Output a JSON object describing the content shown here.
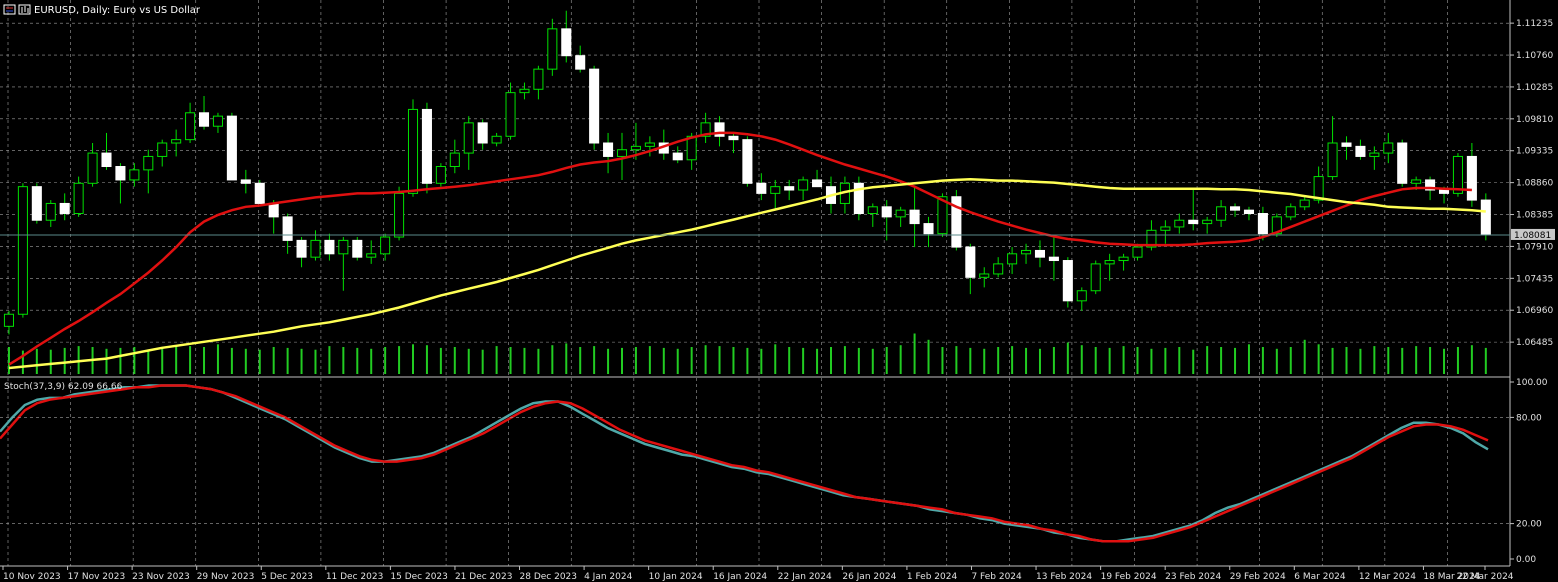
{
  "window": {
    "title": "EURUSD, Daily:  Euro vs US Dollar",
    "icons": [
      "menu-icon",
      "candle-chart-icon"
    ]
  },
  "colors": {
    "background": "#000000",
    "grid": "#a0a0a0",
    "candle_up_fill": "#000000",
    "candle_up_border": "#00e000",
    "candle_down_fill": "#ffffff",
    "candle_down_border": "#ffffff",
    "wick": "#00e000",
    "volume": "#22cc22",
    "ma_fast": "#e01010",
    "ma_slow": "#ffff55",
    "stoch_main": "#4fa8a8",
    "stoch_signal": "#e01010",
    "current_price_line": "#5a8a8a"
  },
  "chart_data": {
    "type": "candlestick",
    "symbol": "EURUSD",
    "timeframe": "Daily",
    "price_axis": {
      "ylim": [
        1.0604,
        1.1152
      ],
      "ticks": [
        "1.11235",
        "1.10760",
        "1.10285",
        "1.09810",
        "1.09335",
        "1.08860",
        "1.08385",
        "1.07910",
        "1.07435",
        "1.06960",
        "1.06485"
      ],
      "current_price": "1.08081"
    },
    "time_axis": {
      "labels": [
        "10 Nov 2023",
        "17 Nov 2023",
        "23 Nov 2023",
        "29 Nov 2023",
        "5 Dec 2023",
        "11 Dec 2023",
        "15 Dec 2023",
        "21 Dec 2023",
        "28 Dec 2023",
        "4 Jan 2024",
        "10 Jan 2024",
        "16 Jan 2024",
        "22 Jan 2024",
        "26 Jan 2024",
        "1 Feb 2024",
        "7 Feb 2024",
        "13 Feb 2024",
        "19 Feb 2024",
        "23 Feb 2024",
        "29 Feb 2024",
        "6 Mar 2024",
        "12 Mar 2024",
        "18 Mar 2024",
        "22 Mar 2024"
      ]
    },
    "candles_ohlc": [
      [
        1.0672,
        1.0695,
        1.066,
        1.069
      ],
      [
        1.069,
        1.0885,
        1.0685,
        1.088
      ],
      [
        1.088,
        1.0885,
        1.0825,
        1.083
      ],
      [
        1.083,
        1.086,
        1.082,
        1.0855
      ],
      [
        1.0855,
        1.087,
        1.083,
        1.084
      ],
      [
        1.084,
        1.0895,
        1.0835,
        1.0885
      ],
      [
        1.0885,
        1.0945,
        1.088,
        1.093
      ],
      [
        1.093,
        1.096,
        1.0905,
        1.091
      ],
      [
        1.091,
        1.0915,
        1.0855,
        1.089
      ],
      [
        1.089,
        1.0915,
        1.088,
        1.0905
      ],
      [
        1.0905,
        1.0935,
        1.087,
        1.0925
      ],
      [
        1.0925,
        1.095,
        1.091,
        1.0945
      ],
      [
        1.0945,
        1.0965,
        1.0925,
        1.095
      ],
      [
        1.095,
        1.1005,
        1.0945,
        1.099
      ],
      [
        1.099,
        1.1015,
        1.0965,
        1.097
      ],
      [
        1.097,
        1.099,
        1.096,
        1.0985
      ],
      [
        1.0985,
        1.099,
        1.091,
        1.089
      ],
      [
        1.089,
        1.0905,
        1.087,
        1.0885
      ],
      [
        1.0885,
        1.089,
        1.086,
        1.0855
      ],
      [
        1.0855,
        1.086,
        1.081,
        1.0835
      ],
      [
        1.0835,
        1.084,
        1.078,
        1.08
      ],
      [
        1.08,
        1.0805,
        1.076,
        1.0775
      ],
      [
        1.0775,
        1.0815,
        1.077,
        1.08
      ],
      [
        1.08,
        1.081,
        1.077,
        1.078
      ],
      [
        1.078,
        1.0805,
        1.0725,
        1.08
      ],
      [
        1.08,
        1.0805,
        1.077,
        1.0775
      ],
      [
        1.0775,
        1.08,
        1.0765,
        1.078
      ],
      [
        1.078,
        1.081,
        1.077,
        1.0805
      ],
      [
        1.0805,
        1.088,
        1.08,
        1.087
      ],
      [
        1.087,
        1.101,
        1.0865,
        1.0995
      ],
      [
        1.0995,
        1.1005,
        1.087,
        1.0885
      ],
      [
        1.0885,
        1.0915,
        1.088,
        1.091
      ],
      [
        1.091,
        1.095,
        1.09,
        1.093
      ],
      [
        1.093,
        1.0985,
        1.0905,
        1.0975
      ],
      [
        1.0975,
        1.098,
        1.0935,
        1.0945
      ],
      [
        1.0945,
        1.096,
        1.094,
        1.0955
      ],
      [
        1.0955,
        1.1035,
        1.095,
        1.102
      ],
      [
        1.102,
        1.1035,
        1.101,
        1.1025
      ],
      [
        1.1025,
        1.106,
        1.101,
        1.1055
      ],
      [
        1.1055,
        1.113,
        1.1045,
        1.1115
      ],
      [
        1.1115,
        1.1142,
        1.1065,
        1.1075
      ],
      [
        1.1075,
        1.109,
        1.105,
        1.1055
      ],
      [
        1.1055,
        1.106,
        1.0935,
        1.0945
      ],
      [
        1.0945,
        1.096,
        1.09,
        1.0925
      ],
      [
        1.0925,
        1.096,
        1.089,
        1.0935
      ],
      [
        1.0935,
        1.0975,
        1.092,
        1.094
      ],
      [
        1.094,
        1.0955,
        1.0925,
        1.0945
      ],
      [
        1.0945,
        1.0965,
        1.092,
        1.093
      ],
      [
        1.093,
        1.094,
        1.0915,
        1.092
      ],
      [
        1.092,
        1.096,
        1.0905,
        1.0955
      ],
      [
        1.0955,
        1.099,
        1.0945,
        1.0975
      ],
      [
        1.0975,
        1.0985,
        1.094,
        1.0955
      ],
      [
        1.0955,
        1.096,
        1.093,
        1.095
      ],
      [
        1.095,
        1.0955,
        1.088,
        1.0885
      ],
      [
        1.0885,
        1.09,
        1.086,
        1.087
      ],
      [
        1.087,
        1.089,
        1.0845,
        1.088
      ],
      [
        1.088,
        1.089,
        1.086,
        1.0875
      ],
      [
        1.0875,
        1.0895,
        1.086,
        1.089
      ],
      [
        1.089,
        1.0905,
        1.088,
        1.088
      ],
      [
        1.088,
        1.0895,
        1.084,
        1.0855
      ],
      [
        1.0855,
        1.0895,
        1.084,
        1.0885
      ],
      [
        1.0885,
        1.0895,
        1.083,
        1.084
      ],
      [
        1.084,
        1.0855,
        1.082,
        1.085
      ],
      [
        1.085,
        1.086,
        1.08,
        1.0835
      ],
      [
        1.0835,
        1.085,
        1.082,
        1.0845
      ],
      [
        1.0845,
        1.088,
        1.079,
        1.0825
      ],
      [
        1.0825,
        1.0835,
        1.079,
        1.081
      ],
      [
        1.081,
        1.087,
        1.0805,
        1.0865
      ],
      [
        1.0865,
        1.0875,
        1.0785,
        1.079
      ],
      [
        1.079,
        1.0795,
        1.072,
        1.0745
      ],
      [
        1.0745,
        1.076,
        1.073,
        1.075
      ],
      [
        1.075,
        1.0775,
        1.0745,
        1.0765
      ],
      [
        1.0765,
        1.079,
        1.075,
        1.078
      ],
      [
        1.078,
        1.0795,
        1.0765,
        1.0785
      ],
      [
        1.0785,
        1.08,
        1.076,
        1.0775
      ],
      [
        1.0775,
        1.0805,
        1.074,
        1.077
      ],
      [
        1.077,
        1.0775,
        1.07,
        1.071
      ],
      [
        1.071,
        1.073,
        1.0695,
        1.0725
      ],
      [
        1.0725,
        1.077,
        1.072,
        1.0765
      ],
      [
        1.0765,
        1.078,
        1.074,
        1.077
      ],
      [
        1.077,
        1.078,
        1.0755,
        1.0775
      ],
      [
        1.0775,
        1.0795,
        1.077,
        1.079
      ],
      [
        1.079,
        1.083,
        1.0785,
        1.0815
      ],
      [
        1.0815,
        1.083,
        1.0795,
        1.082
      ],
      [
        1.082,
        1.084,
        1.081,
        1.083
      ],
      [
        1.083,
        1.0875,
        1.0815,
        1.0825
      ],
      [
        1.0825,
        1.0835,
        1.081,
        1.083
      ],
      [
        1.083,
        1.086,
        1.082,
        1.085
      ],
      [
        1.085,
        1.0855,
        1.0835,
        1.0845
      ],
      [
        1.0845,
        1.085,
        1.083,
        1.084
      ],
      [
        1.084,
        1.085,
        1.08,
        1.081
      ],
      [
        1.081,
        1.084,
        1.0805,
        1.0835
      ],
      [
        1.0835,
        1.0855,
        1.083,
        1.085
      ],
      [
        1.085,
        1.0865,
        1.0845,
        1.086
      ],
      [
        1.086,
        1.091,
        1.0855,
        1.0895
      ],
      [
        1.0895,
        1.0985,
        1.089,
        1.0945
      ],
      [
        1.0945,
        1.0955,
        1.092,
        1.094
      ],
      [
        1.094,
        1.095,
        1.092,
        1.0925
      ],
      [
        1.0925,
        1.094,
        1.0905,
        1.093
      ],
      [
        1.093,
        1.096,
        1.0915,
        1.0945
      ],
      [
        1.0945,
        1.095,
        1.088,
        1.0885
      ],
      [
        1.0885,
        1.0895,
        1.0875,
        1.089
      ],
      [
        1.089,
        1.0895,
        1.086,
        1.0875
      ],
      [
        1.0875,
        1.088,
        1.0855,
        1.087
      ],
      [
        1.087,
        1.093,
        1.0865,
        1.0925
      ],
      [
        1.0925,
        1.0945,
        1.085,
        1.086
      ],
      [
        1.086,
        1.087,
        1.08,
        1.0808
      ]
    ],
    "series": [
      {
        "name": "",
        "kind": "moving-average",
        "values": [
          1.0615,
          1.0628,
          1.0642,
          1.0655,
          1.0668,
          1.068,
          1.0693,
          1.0707,
          1.072,
          1.0736,
          1.0752,
          1.077,
          1.079,
          1.0812,
          1.0828,
          1.0838,
          1.0845,
          1.085,
          1.0852,
          1.0855,
          1.0858,
          1.0861,
          1.0864,
          1.0866,
          1.0868,
          1.087,
          1.087,
          1.0871,
          1.0872,
          1.0874,
          1.0876,
          1.0878,
          1.088,
          1.0882,
          1.0885,
          1.0888,
          1.0891,
          1.0894,
          1.0897,
          1.0902,
          1.0908,
          1.0913,
          1.0916,
          1.0918,
          1.0922,
          1.0927,
          1.0933,
          1.094,
          1.0947,
          1.0953,
          1.0958,
          1.096,
          1.096,
          1.0958,
          1.0955,
          1.095,
          1.0943,
          1.0935,
          1.0927,
          1.092,
          1.0913,
          1.0907,
          1.0901,
          1.0895,
          1.0888,
          1.088,
          1.087,
          1.086,
          1.085,
          1.0842,
          1.0835,
          1.0828,
          1.0822,
          1.0816,
          1.0811,
          1.0806,
          1.0802,
          1.08,
          1.0797,
          1.0795,
          1.0794,
          1.0793,
          1.0793,
          1.0793,
          1.0793,
          1.0794,
          1.0796,
          1.0797,
          1.0798,
          1.08,
          1.0805,
          1.0812,
          1.082,
          1.0828,
          1.0836,
          1.0844,
          1.0852,
          1.086,
          1.0866,
          1.0871,
          1.0876,
          1.0878,
          1.0878,
          1.0877,
          1.0876,
          1.0875
        ]
      },
      {
        "name": "",
        "kind": "moving-average",
        "values": [
          1.061,
          1.0612,
          1.0614,
          1.0616,
          1.0618,
          1.062,
          1.0622,
          1.0624,
          1.0628,
          1.0632,
          1.0636,
          1.064,
          1.0643,
          1.0646,
          1.0649,
          1.0652,
          1.0655,
          1.0658,
          1.0661,
          1.0664,
          1.0668,
          1.0672,
          1.0675,
          1.0678,
          1.0682,
          1.0686,
          1.069,
          1.0695,
          1.07,
          1.0706,
          1.0712,
          1.0718,
          1.0723,
          1.0728,
          1.0733,
          1.0738,
          1.0744,
          1.075,
          1.0756,
          1.0763,
          1.077,
          1.0777,
          1.0783,
          1.0789,
          1.0795,
          1.08,
          1.0804,
          1.0808,
          1.0812,
          1.0816,
          1.0821,
          1.0826,
          1.0831,
          1.0836,
          1.0841,
          1.0846,
          1.0851,
          1.0856,
          1.0861,
          1.0867,
          1.0872,
          1.0876,
          1.0879,
          1.0881,
          1.0883,
          1.0885,
          1.0887,
          1.0889,
          1.089,
          1.0891,
          1.089,
          1.0889,
          1.0889,
          1.0888,
          1.0887,
          1.0886,
          1.0884,
          1.0882,
          1.088,
          1.0878,
          1.0877,
          1.0877,
          1.0877,
          1.0877,
          1.0877,
          1.0877,
          1.0877,
          1.0876,
          1.0876,
          1.0875,
          1.0873,
          1.0871,
          1.0869,
          1.0866,
          1.0863,
          1.086,
          1.0857,
          1.0855,
          1.0853,
          1.085,
          1.0849,
          1.0848,
          1.0847,
          1.0847,
          1.0846,
          1.0845,
          1.0843,
          1.0842,
          1.0841,
          1.0839,
          1.0838,
          1.0838,
          1.0837,
          1.0837,
          1.0836,
          1.0835
        ]
      }
    ],
    "volume": [
      30,
      26,
      28,
      27,
      29,
      31,
      30,
      28,
      29,
      30,
      27,
      28,
      32,
      31,
      30,
      33,
      29,
      28,
      27,
      30,
      29,
      28,
      27,
      31,
      30,
      29,
      28,
      30,
      31,
      33,
      32,
      29,
      30,
      28,
      27,
      31,
      30,
      29,
      28,
      32,
      34,
      30,
      31,
      28,
      29,
      30,
      31,
      29,
      28,
      30,
      32,
      31,
      30,
      29,
      28,
      33,
      30,
      29,
      28,
      30,
      31,
      29,
      28,
      30,
      32,
      45,
      38,
      30,
      31,
      29,
      28,
      30,
      31,
      29,
      28,
      30,
      35,
      32,
      30,
      29,
      31,
      30,
      28,
      29,
      30,
      27,
      31,
      30,
      29,
      33,
      30,
      28,
      30,
      38,
      33,
      29,
      30,
      28,
      31,
      30,
      29,
      31,
      30,
      28,
      30,
      32,
      29,
      30
    ],
    "stochastic": {
      "label": "Stoch(37,3,9) 62.09 66.66",
      "ylim": [
        0,
        100
      ],
      "ticks": [
        "100.00",
        "80.00",
        "20.00",
        "0.00"
      ],
      "main": [
        72,
        80,
        87,
        90,
        91,
        91,
        93,
        94,
        95,
        96,
        97,
        97,
        98,
        98,
        98,
        98,
        97,
        96,
        94,
        91,
        88,
        85,
        82,
        79,
        75,
        71,
        67,
        63,
        60,
        57,
        55,
        55,
        56,
        57,
        58,
        60,
        63,
        66,
        69,
        73,
        77,
        81,
        85,
        88,
        89,
        89,
        86,
        82,
        78,
        74,
        71,
        68,
        65,
        63,
        61,
        59,
        58,
        56,
        54,
        52,
        51,
        49,
        48,
        46,
        44,
        42,
        40,
        38,
        36,
        35,
        34,
        33,
        32,
        31,
        30,
        28,
        27,
        26,
        25,
        23,
        22,
        20,
        19,
        18,
        17,
        15,
        14,
        12,
        11,
        10,
        10,
        11,
        12,
        13,
        15,
        17,
        19,
        22,
        26,
        29,
        31,
        34,
        37,
        40,
        43,
        46,
        49,
        52,
        55,
        58,
        62,
        66,
        70,
        74,
        77,
        77,
        76,
        74,
        71,
        66,
        62
      ],
      "signal": [
        68,
        76,
        84,
        88,
        90,
        91,
        92,
        93,
        94,
        95,
        96,
        97,
        97,
        98,
        98,
        98,
        97,
        96,
        94,
        92,
        89,
        86,
        83,
        80,
        76,
        72,
        68,
        64,
        61,
        58,
        56,
        55,
        55,
        56,
        57,
        59,
        62,
        65,
        68,
        71,
        75,
        79,
        83,
        86,
        88,
        89,
        88,
        85,
        81,
        77,
        73,
        70,
        67,
        65,
        63,
        61,
        59,
        57,
        55,
        53,
        52,
        50,
        49,
        47,
        45,
        43,
        41,
        39,
        37,
        35,
        34,
        33,
        32,
        31,
        30,
        29,
        28,
        26,
        25,
        24,
        23,
        21,
        20,
        19,
        17,
        16,
        14,
        13,
        11,
        10,
        10,
        10,
        11,
        12,
        14,
        16,
        18,
        21,
        24,
        27,
        30,
        33,
        36,
        39,
        42,
        45,
        48,
        51,
        54,
        57,
        61,
        65,
        69,
        72,
        75,
        76,
        76,
        75,
        73,
        70,
        67
      ]
    }
  }
}
